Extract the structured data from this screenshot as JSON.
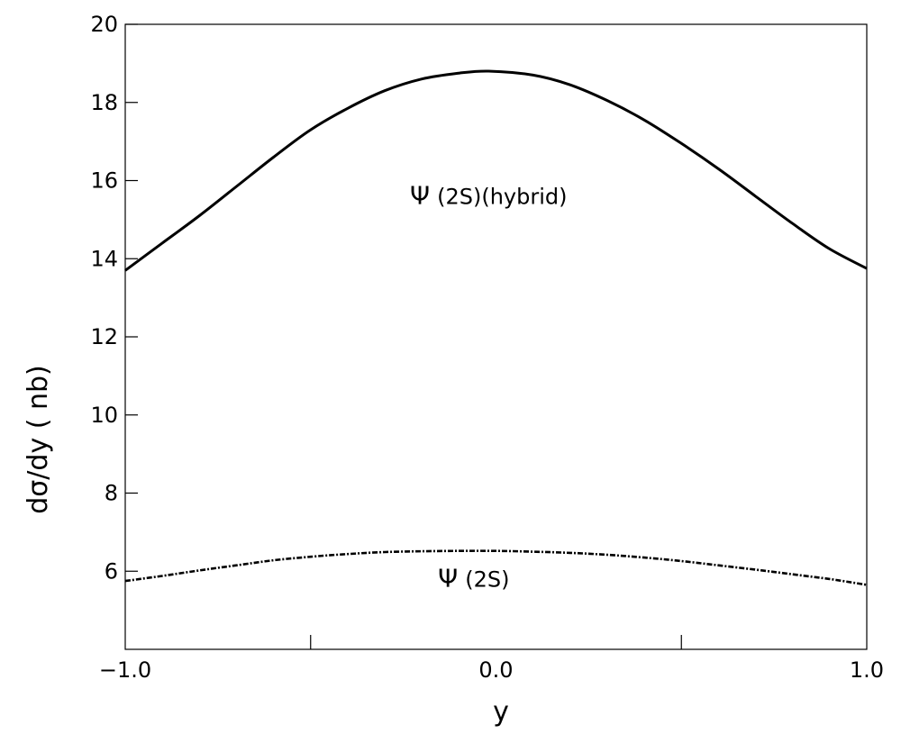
{
  "chart_data": {
    "type": "line",
    "title": "",
    "xlabel": "y",
    "ylabel": "dσ/dy ( nb)",
    "xlim": [
      -1.0,
      1.0
    ],
    "ylim": [
      4,
      20
    ],
    "x_tick_labels": [
      {
        "value": -1.0,
        "label": "−1.0"
      },
      {
        "value": 0.0,
        "label": "0.0"
      },
      {
        "value": 1.0,
        "label": "1.0"
      }
    ],
    "x_minor_ticks": [
      -0.5,
      0.5
    ],
    "y_tick_labels": [
      {
        "value": 6,
        "label": "6"
      },
      {
        "value": 8,
        "label": "8"
      },
      {
        "value": 10,
        "label": "10"
      },
      {
        "value": 12,
        "label": "12"
      },
      {
        "value": 14,
        "label": "14"
      },
      {
        "value": 16,
        "label": "16"
      },
      {
        "value": 18,
        "label": "18"
      },
      {
        "value": 20,
        "label": "20"
      }
    ],
    "grid": false,
    "legend": "none",
    "series": [
      {
        "name": "Ψ (2S)(hybrid)",
        "symbol": "Ψ",
        "label_text": "(2S)(hybrid)",
        "style": "solid",
        "color": "#000000",
        "label_anchor": {
          "x": -0.02,
          "y": 15.4
        },
        "x": [
          -1.0,
          -0.9,
          -0.8,
          -0.7,
          -0.6,
          -0.5,
          -0.4,
          -0.3,
          -0.2,
          -0.1,
          -0.02,
          0.1,
          0.2,
          0.3,
          0.4,
          0.5,
          0.6,
          0.7,
          0.8,
          0.9,
          1.0
        ],
        "values": [
          13.7,
          14.4,
          15.1,
          15.85,
          16.6,
          17.3,
          17.85,
          18.3,
          18.6,
          18.75,
          18.8,
          18.7,
          18.45,
          18.05,
          17.55,
          16.95,
          16.3,
          15.6,
          14.9,
          14.25,
          13.75
        ]
      },
      {
        "name": "Ψ (2S)",
        "symbol": "Ψ",
        "label_text": "(2S)",
        "style": "dashdot",
        "color": "#000000",
        "label_anchor": {
          "x": -0.06,
          "y": 5.6
        },
        "x": [
          -1.0,
          -0.9,
          -0.8,
          -0.7,
          -0.6,
          -0.5,
          -0.4,
          -0.3,
          -0.2,
          -0.1,
          0.0,
          0.1,
          0.2,
          0.3,
          0.4,
          0.5,
          0.6,
          0.7,
          0.8,
          0.9,
          1.0
        ],
        "values": [
          5.75,
          5.88,
          6.02,
          6.15,
          6.28,
          6.37,
          6.44,
          6.49,
          6.51,
          6.52,
          6.52,
          6.5,
          6.47,
          6.42,
          6.35,
          6.26,
          6.15,
          6.04,
          5.92,
          5.8,
          5.65
        ]
      }
    ]
  }
}
